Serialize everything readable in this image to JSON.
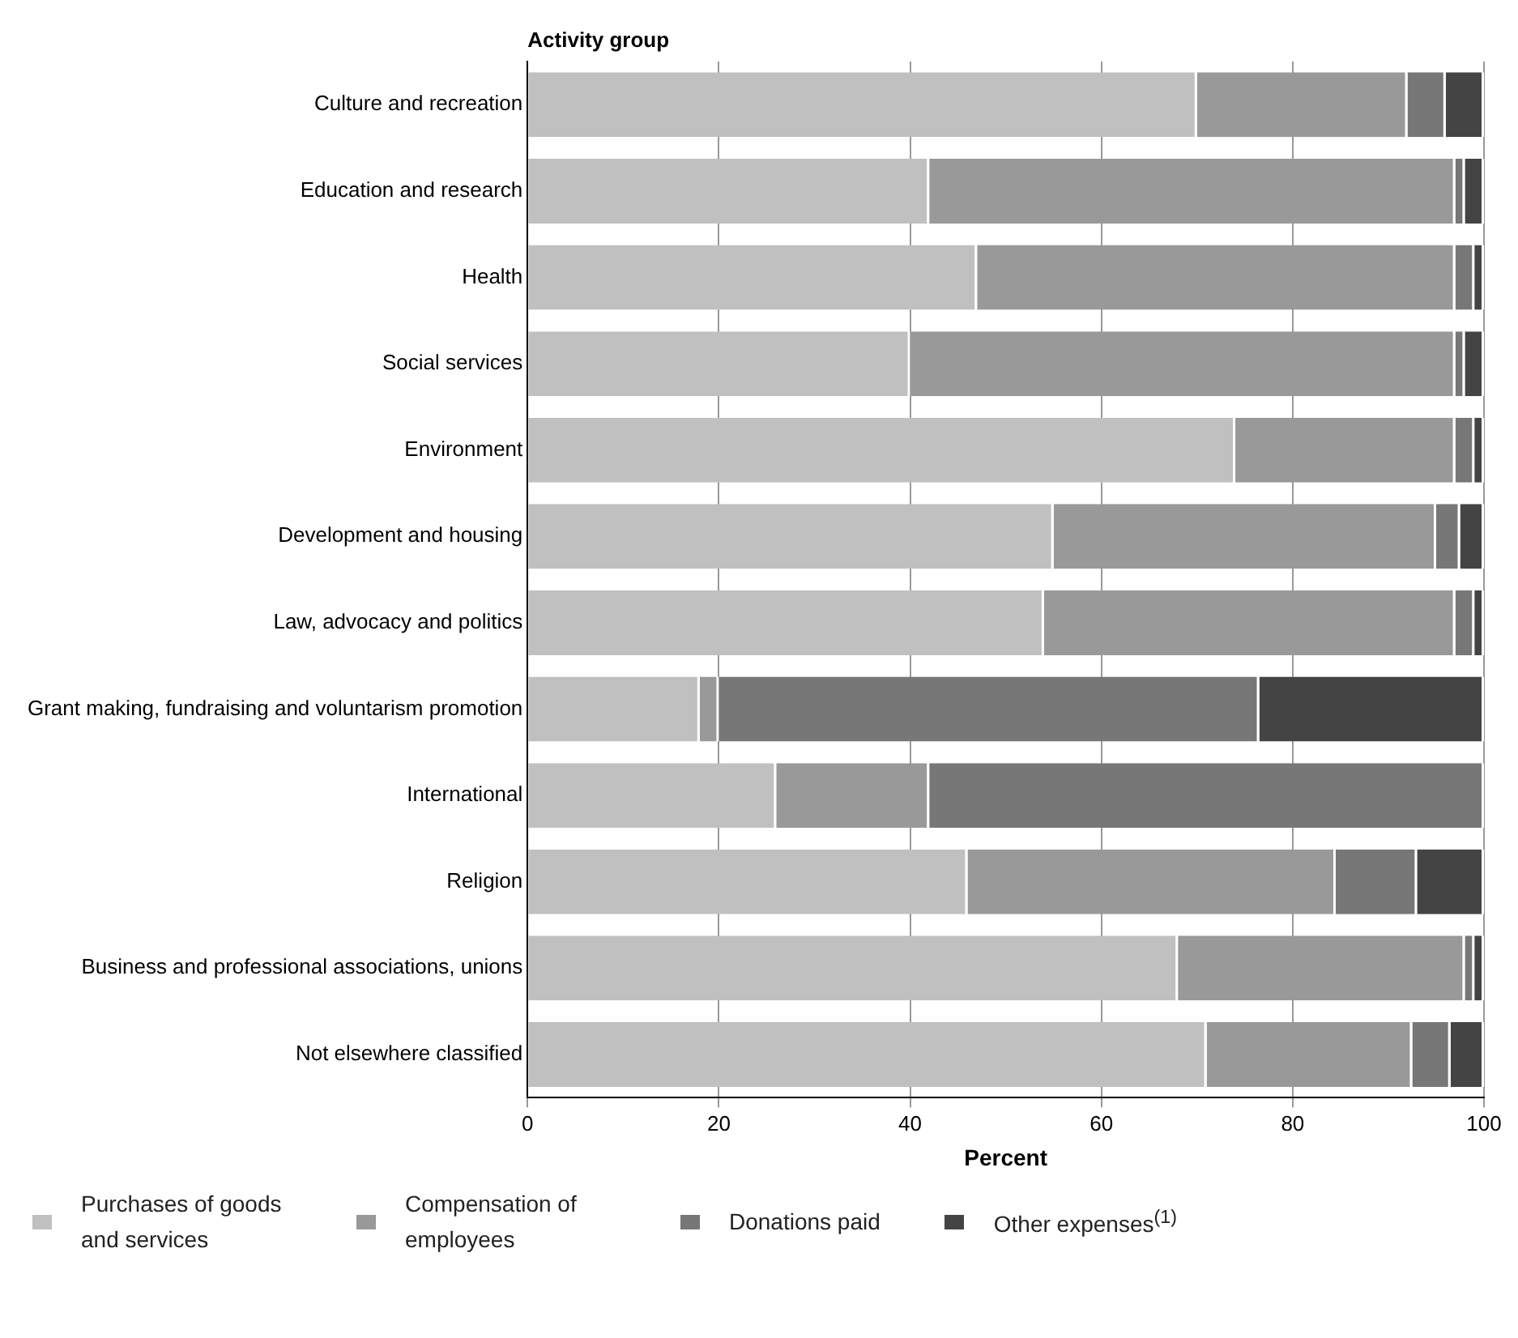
{
  "chart_data": {
    "type": "bar",
    "orientation": "horizontal",
    "stacked": true,
    "ylabel": "Activity group",
    "xlabel": "Percent",
    "categories": [
      "Culture and recreation",
      "Education and research",
      "Health",
      "Social services",
      "Environment",
      "Development and housing",
      "Law, advocacy and politics",
      "Grant making, fundraising and voluntarism promotion",
      "International",
      "Religion",
      "Business and professional associations, unions",
      "Not elsewhere classified"
    ],
    "series": [
      {
        "name": "Purchases of goods and services",
        "color": "#c0c0c0",
        "values": [
          70,
          42,
          47,
          40,
          74,
          55,
          54,
          18,
          26,
          46,
          68,
          71
        ]
      },
      {
        "name": "Compensation of employees",
        "color": "#999999",
        "values": [
          22,
          55,
          50,
          57,
          23,
          40,
          43,
          2,
          16,
          38.5,
          30,
          21.5
        ]
      },
      {
        "name": "Donations paid",
        "color": "#777777",
        "values": [
          4,
          1,
          2,
          1,
          2,
          2.5,
          2,
          56.5,
          58,
          8.5,
          1,
          4
        ]
      },
      {
        "name": "Other expenses$^{(1)}$",
        "color": "#444444",
        "values": [
          4,
          2,
          1,
          2,
          1,
          2.5,
          1,
          23.5,
          0,
          7,
          1,
          3.5
        ]
      }
    ],
    "xlim": [
      0,
      100
    ],
    "xticks": [
      0,
      20,
      40,
      60,
      80,
      100
    ],
    "grid": "x",
    "legend": "bottom"
  }
}
